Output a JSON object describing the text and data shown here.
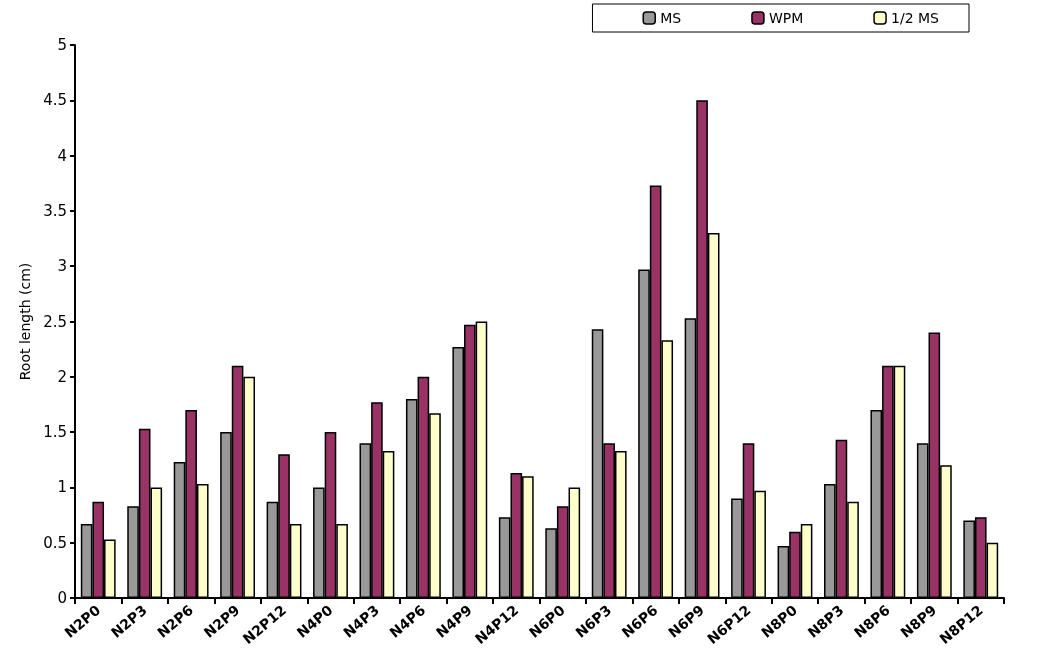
{
  "chart_data": {
    "type": "bar",
    "ylabel": "Root length (cm)",
    "categories": [
      "N2P0",
      "N2P3",
      "N2P6",
      "N2P9",
      "N2P12",
      "N4P0",
      "N4P3",
      "N4P6",
      "N4P9",
      "N4P12",
      "N6P0",
      "N6P3",
      "N6P6",
      "N6P9",
      "N6P12",
      "N8P0",
      "N8P3",
      "N8P6",
      "N8P9",
      "N8P12"
    ],
    "series": [
      {
        "name": "MS",
        "color": "#999999",
        "values": [
          0.67,
          0.83,
          1.23,
          1.5,
          0.87,
          1.0,
          1.4,
          1.8,
          2.27,
          0.73,
          0.63,
          2.43,
          2.97,
          2.53,
          0.9,
          0.47,
          1.03,
          1.7,
          1.4,
          0.7
        ]
      },
      {
        "name": "WPM",
        "color": "#993366",
        "values": [
          0.87,
          1.53,
          1.7,
          2.1,
          1.3,
          1.5,
          1.77,
          2.0,
          2.47,
          1.13,
          0.83,
          1.4,
          3.73,
          4.5,
          1.4,
          0.6,
          1.43,
          2.1,
          2.4,
          0.73
        ]
      },
      {
        "name": "1/2 MS",
        "color": "#ffffcc",
        "values": [
          0.53,
          1.0,
          1.03,
          2.0,
          0.67,
          0.67,
          1.33,
          1.67,
          2.5,
          1.1,
          1.0,
          1.33,
          2.33,
          3.3,
          0.97,
          0.67,
          0.87,
          2.1,
          1.2,
          0.5
        ]
      }
    ],
    "ylim": [
      0,
      5
    ],
    "yticks": [
      0,
      0.5,
      1,
      1.5,
      2,
      2.5,
      3,
      3.5,
      4,
      4.5,
      5
    ],
    "grid": false,
    "legend": "top right"
  }
}
